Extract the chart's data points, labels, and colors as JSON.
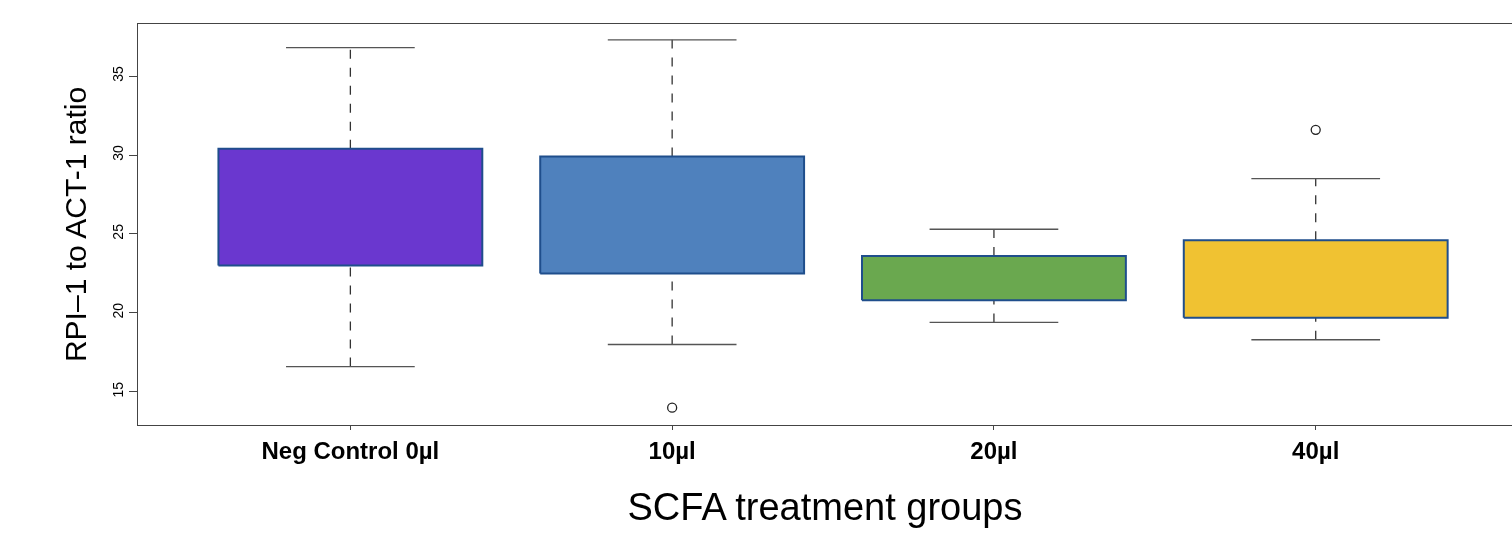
{
  "chart_data": {
    "type": "box",
    "xlabel": "SCFA treatment groups",
    "ylabel": "RPI–1 to ACT-1 ratio",
    "categories": [
      "Neg Control 0µl",
      "10µl",
      "20µl",
      "40µl"
    ],
    "colors": [
      "#6a37cf",
      "#4f81bd",
      "#6aa84f",
      "#f0c232"
    ],
    "boxes": [
      {
        "low": 16.6,
        "q1": 23.0,
        "q3": 30.4,
        "high": 36.8
      },
      {
        "low": 18.0,
        "q1": 22.5,
        "q3": 29.9,
        "high": 37.3,
        "outliers": [
          14.0
        ]
      },
      {
        "low": 19.4,
        "q1": 20.8,
        "q3": 23.6,
        "high": 25.3
      },
      {
        "low": 18.3,
        "q1": 19.7,
        "q3": 24.6,
        "high": 28.5,
        "outliers": [
          31.6
        ]
      }
    ],
    "ylim": [
      12.9,
      38.3
    ],
    "yticks": [
      15,
      20,
      25,
      30,
      35
    ]
  }
}
